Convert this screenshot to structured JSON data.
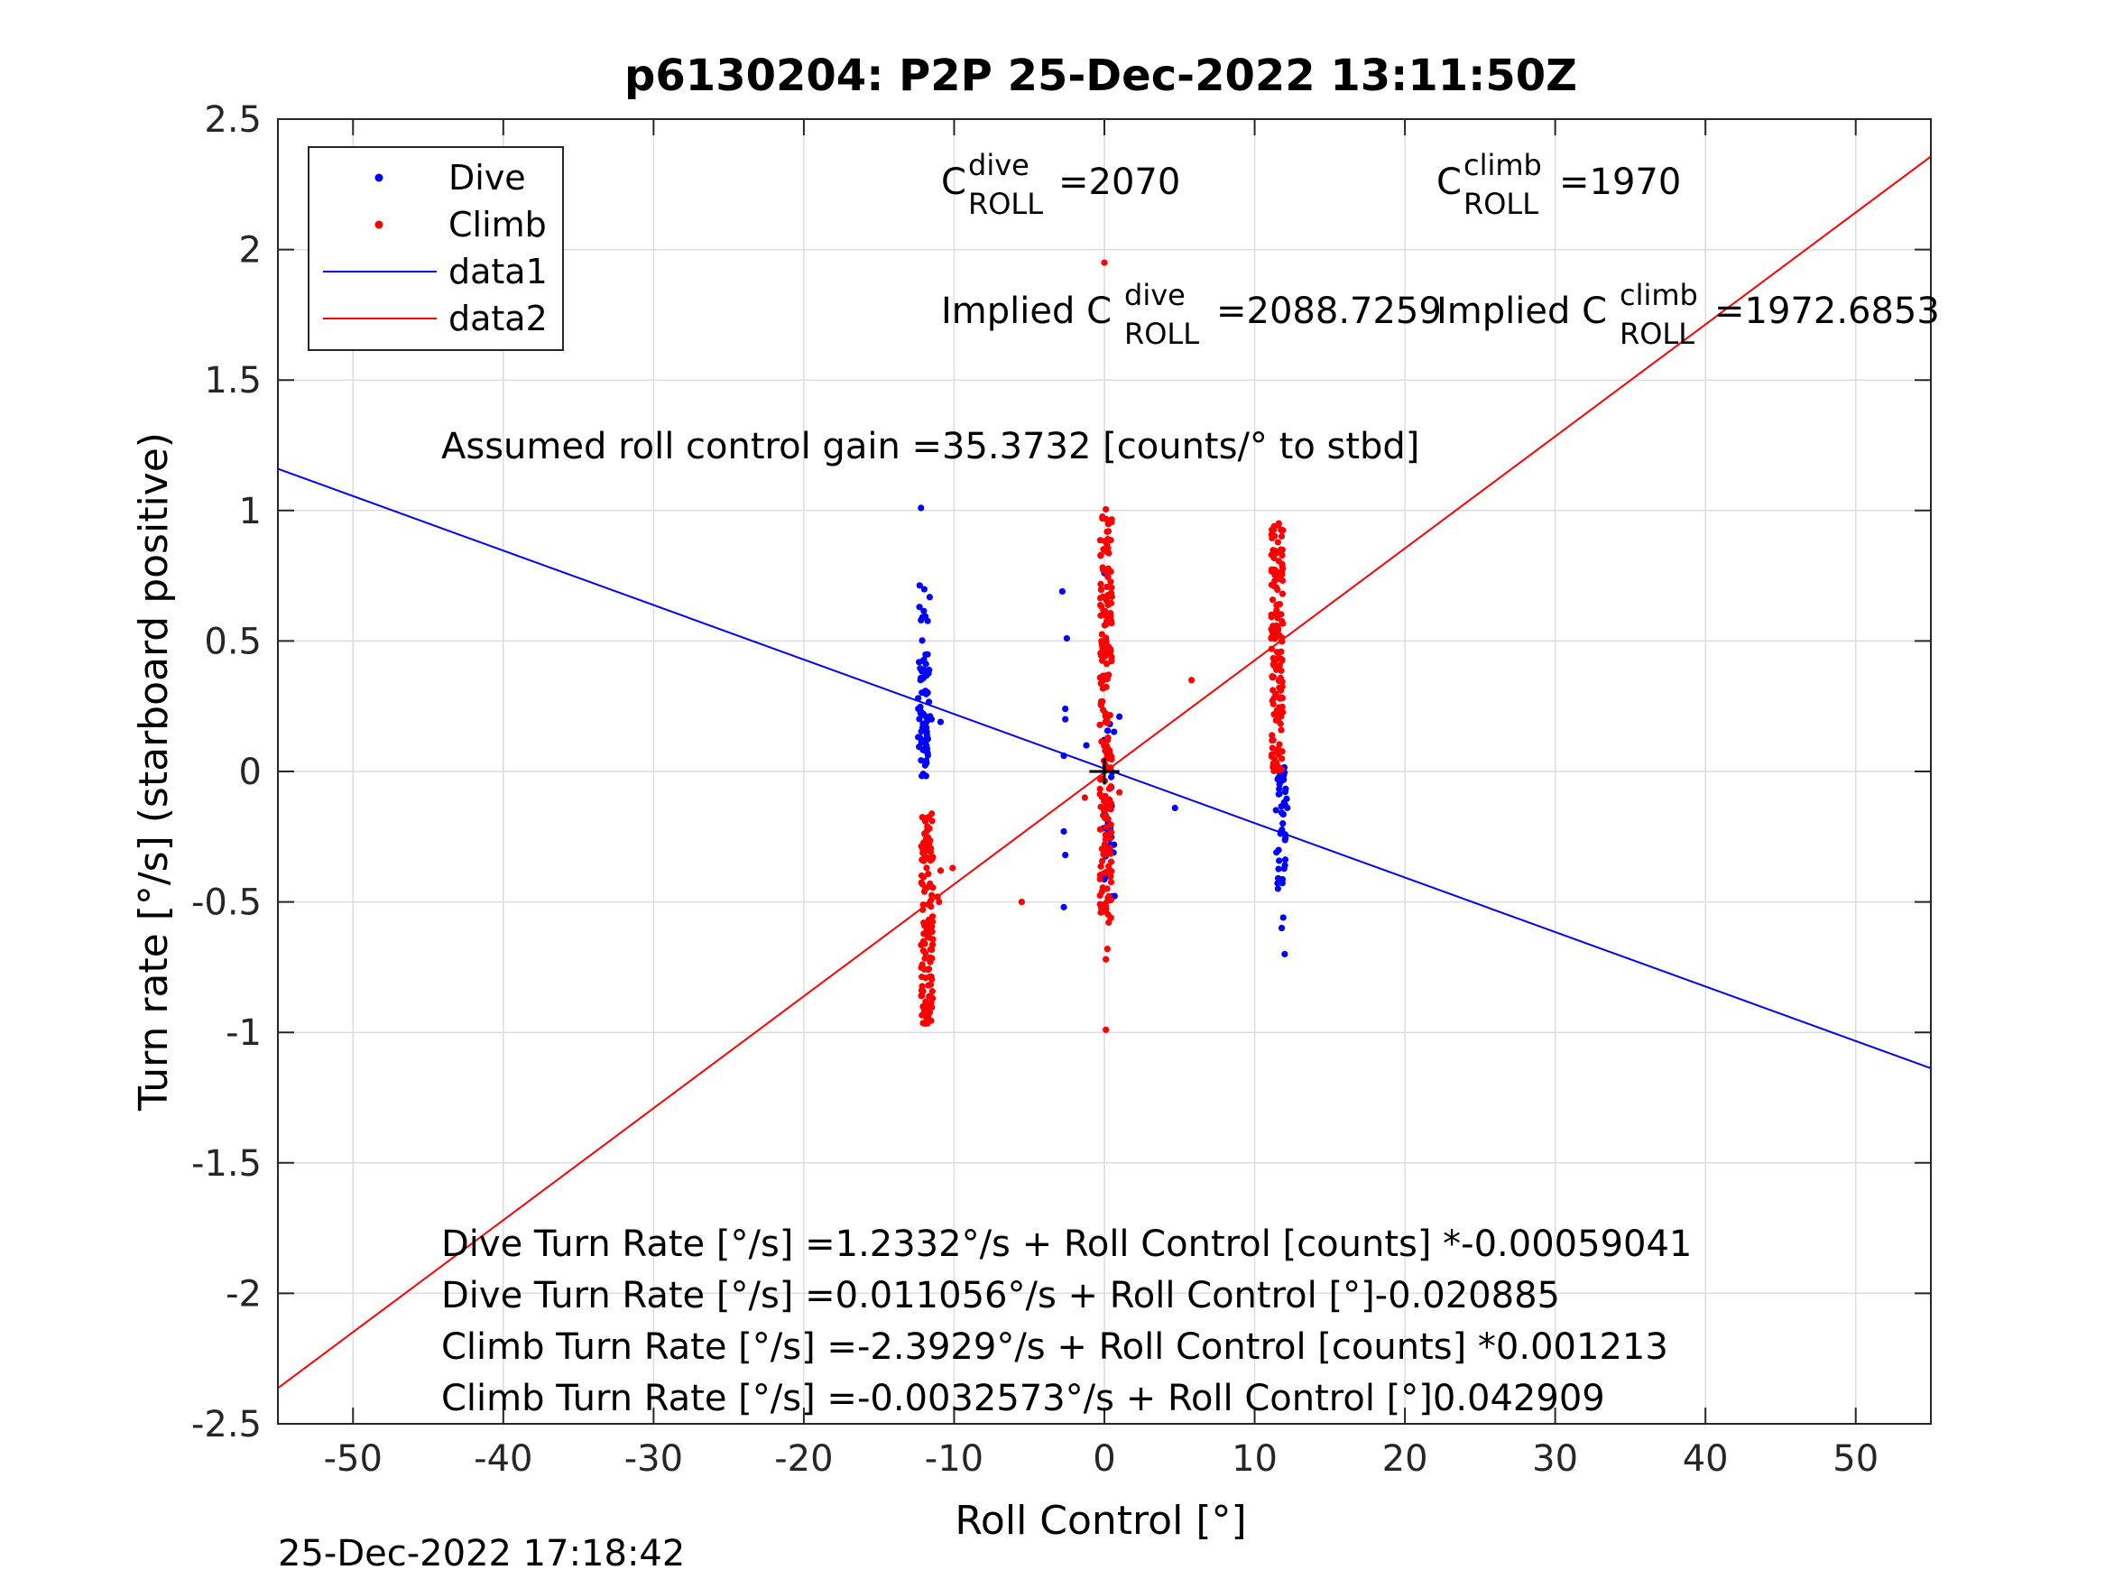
{
  "chart_data": {
    "type": "scatter",
    "title": "p6130204: P2P 25-Dec-2022 13:11:50Z",
    "xlabel": "Roll Control [°]",
    "ylabel": "Turn rate [°/s] (starboard positive)",
    "xlim": [
      -55,
      55
    ],
    "ylim": [
      -2.5,
      2.5
    ],
    "x_ticks": [
      -50,
      -40,
      -30,
      -20,
      -10,
      0,
      10,
      20,
      30,
      40,
      50
    ],
    "x_tick_labels": [
      "-50",
      "-40",
      "-30",
      "-20",
      "-10",
      "0",
      "10",
      "20",
      "30",
      "40",
      "50"
    ],
    "y_ticks": [
      -2.5,
      -2,
      -1.5,
      -1,
      -0.5,
      0,
      0.5,
      1,
      1.5,
      2,
      2.5
    ],
    "y_tick_labels": [
      "-2.5",
      "-2",
      "-1.5",
      "-1",
      "-0.5",
      "0",
      "0.5",
      "1",
      "1.5",
      "2",
      "2.5"
    ],
    "grid": true,
    "legend_position": "top-left",
    "colors": {
      "dive": "#0000ff",
      "climb": "#ff0000",
      "grid": "#dcdcdc"
    },
    "legend": [
      {
        "label": "Dive",
        "kind": "marker",
        "color": "#0000ff"
      },
      {
        "label": "Climb",
        "kind": "marker",
        "color": "#ff0000"
      },
      {
        "label": "data1",
        "kind": "line",
        "color": "#0000ff"
      },
      {
        "label": "data2",
        "kind": "line",
        "color": "#ff0000"
      }
    ],
    "fit_lines": [
      {
        "name": "data1",
        "color": "#0000ff",
        "x": [
          -55,
          55
        ],
        "y": [
          1.1597,
          -1.1375
        ]
      },
      {
        "name": "data2",
        "color": "#ff0000",
        "x": [
          -55,
          55
        ],
        "y": [
          -2.3632,
          2.3568
        ]
      }
    ],
    "series": [
      {
        "name": "Dive",
        "color": "#0000ff",
        "clusters": [
          {
            "x": -12.0,
            "y_min": -0.02,
            "y_max": 0.45,
            "count": 70
          },
          {
            "x": -12.0,
            "y_min": 0.5,
            "y_max": 0.74,
            "count": 10
          },
          {
            "x": 0.3,
            "y_min": -0.5,
            "y_max": 0.2,
            "count": 30
          },
          {
            "x": 11.8,
            "y_min": -0.47,
            "y_max": 0.02,
            "count": 45
          }
        ],
        "points": [
          [
            -12.2,
            1.01
          ],
          [
            -2.8,
            0.69
          ],
          [
            -2.5,
            0.51
          ],
          [
            -2.6,
            0.24
          ],
          [
            -2.6,
            0.2
          ],
          [
            -2.7,
            0.06
          ],
          [
            -2.7,
            -0.23
          ],
          [
            -2.6,
            -0.32
          ],
          [
            -2.7,
            -0.52
          ],
          [
            4.7,
            -0.14
          ],
          [
            1.0,
            0.21
          ],
          [
            -11.5,
            0.2
          ],
          [
            -10.9,
            0.19
          ],
          [
            11.9,
            -0.56
          ],
          [
            11.8,
            -0.6
          ],
          [
            12.0,
            -0.7
          ],
          [
            -1.2,
            0.1
          ],
          [
            0.0,
            0.76
          ]
        ]
      },
      {
        "name": "Climb",
        "color": "#ff0000",
        "clusters": [
          {
            "x": -11.8,
            "y_min": -0.97,
            "y_max": -0.16,
            "count": 130
          },
          {
            "x": 0.1,
            "y_min": -0.58,
            "y_max": 1.02,
            "count": 200
          },
          {
            "x": 11.5,
            "y_min": 0.0,
            "y_max": 0.98,
            "count": 150
          }
        ],
        "points": [
          [
            0.0,
            1.95
          ],
          [
            -5.5,
            -0.5
          ],
          [
            5.8,
            0.35
          ],
          [
            0.1,
            -0.99
          ],
          [
            0.1,
            -0.72
          ],
          [
            0.2,
            -0.68
          ],
          [
            -10.1,
            -0.37
          ],
          [
            -11.1,
            -0.48
          ],
          [
            -11.0,
            -0.5
          ],
          [
            -10.9,
            -0.38
          ],
          [
            -1.3,
            -0.1
          ],
          [
            1.0,
            -0.08
          ]
        ]
      }
    ],
    "annotations": {
      "c_dive": {
        "base": "C",
        "sup": "dive",
        "sub": "ROLL",
        "value": "=2070"
      },
      "c_climb": {
        "base": "C",
        "sup": "climb",
        "sub": "ROLL",
        "value": "=1970"
      },
      "implied_dive": {
        "prefix": "Implied C",
        "sup": "dive",
        "sub": "ROLL",
        "value": "=2088.7259"
      },
      "implied_climb": {
        "prefix": "Implied C",
        "sup": "climb",
        "sub": "ROLL",
        "value": "=1972.6853"
      },
      "gain": "Assumed roll control gain =35.3732 [counts/° to stbd]",
      "equations": [
        "Dive Turn Rate [°/s] =1.2332°/s + Roll Control [counts] *-0.00059041",
        "Dive Turn Rate [°/s] =0.011056°/s + Roll Control [°]-0.020885",
        "Climb Turn Rate [°/s] =-2.3929°/s + Roll Control [counts] *0.001213",
        "Climb Turn Rate [°/s] =-0.0032573°/s + Roll Control [°]0.042909"
      ]
    },
    "timestamp": "25-Dec-2022 17:18:42"
  }
}
